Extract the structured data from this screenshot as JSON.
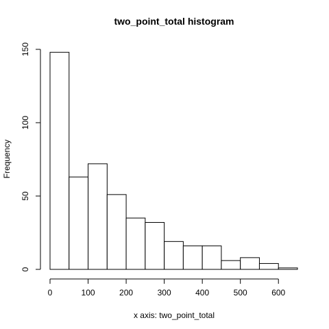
{
  "chart_data": {
    "type": "bar",
    "title": "two_point_total histogram",
    "xlabel": "x axis: two_point_total",
    "ylabel": "Frequency",
    "bin_edges": [
      0,
      50,
      100,
      150,
      200,
      250,
      300,
      350,
      400,
      450,
      500,
      550,
      600,
      650
    ],
    "values": [
      148,
      63,
      72,
      51,
      35,
      32,
      19,
      16,
      16,
      6,
      8,
      4,
      1
    ],
    "xlim": [
      0,
      650
    ],
    "ylim": [
      0,
      150
    ],
    "x_ticks": [
      0,
      100,
      200,
      300,
      400,
      500,
      600
    ],
    "y_ticks": [
      0,
      50,
      100,
      150
    ],
    "grid": false,
    "legend": "none",
    "colors": {
      "bar_fill": "#ffffff",
      "bar_stroke": "#000000"
    }
  }
}
